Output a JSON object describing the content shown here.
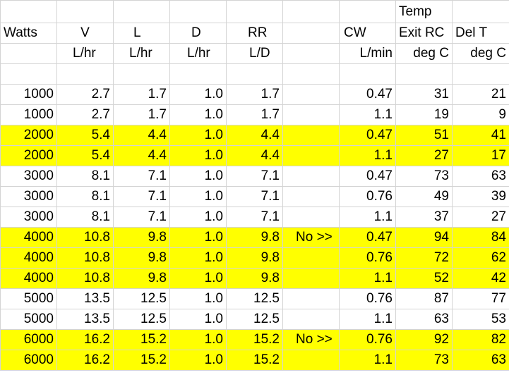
{
  "table": {
    "header": [
      [
        null,
        null,
        null,
        null,
        null,
        null,
        null,
        "Temp",
        null
      ],
      [
        "Watts",
        "V",
        "L",
        "D",
        "RR",
        null,
        "CW",
        "Exit RC",
        "Del  T"
      ],
      [
        null,
        "L/hr",
        "L/hr",
        "L/hr",
        "L/D",
        null,
        "L/min",
        "deg C",
        "deg C"
      ]
    ],
    "highlight_color": "#ffff00",
    "rows": [
      {
        "cells": [
          "1000",
          "2.7",
          "1.7",
          "1.0",
          "1.7",
          null,
          "0.47",
          "31",
          "21"
        ],
        "highlight": false
      },
      {
        "cells": [
          "1000",
          "2.7",
          "1.7",
          "1.0",
          "1.7",
          null,
          "1.1",
          "19",
          "9"
        ],
        "highlight": false
      },
      {
        "cells": [
          "2000",
          "5.4",
          "4.4",
          "1.0",
          "4.4",
          null,
          "0.47",
          "51",
          "41"
        ],
        "highlight": true
      },
      {
        "cells": [
          "2000",
          "5.4",
          "4.4",
          "1.0",
          "4.4",
          null,
          "1.1",
          "27",
          "17"
        ],
        "highlight": true
      },
      {
        "cells": [
          "3000",
          "8.1",
          "7.1",
          "1.0",
          "7.1",
          null,
          "0.47",
          "73",
          "63"
        ],
        "highlight": false
      },
      {
        "cells": [
          "3000",
          "8.1",
          "7.1",
          "1.0",
          "7.1",
          null,
          "0.76",
          "49",
          "39"
        ],
        "highlight": false
      },
      {
        "cells": [
          "3000",
          "8.1",
          "7.1",
          "1.0",
          "7.1",
          null,
          "1.1",
          "37",
          "27"
        ],
        "highlight": false
      },
      {
        "cells": [
          "4000",
          "10.8",
          "9.8",
          "1.0",
          "9.8",
          "No >>",
          "0.47",
          "94",
          "84"
        ],
        "highlight": true
      },
      {
        "cells": [
          "4000",
          "10.8",
          "9.8",
          "1.0",
          "9.8",
          null,
          "0.76",
          "72",
          "62"
        ],
        "highlight": true
      },
      {
        "cells": [
          "4000",
          "10.8",
          "9.8",
          "1.0",
          "9.8",
          null,
          "1.1",
          "52",
          "42"
        ],
        "highlight": true
      },
      {
        "cells": [
          "5000",
          "13.5",
          "12.5",
          "1.0",
          "12.5",
          null,
          "0.76",
          "87",
          "77"
        ],
        "highlight": false
      },
      {
        "cells": [
          "5000",
          "13.5",
          "12.5",
          "1.0",
          "12.5",
          null,
          "1.1",
          "63",
          "53"
        ],
        "highlight": false
      },
      {
        "cells": [
          "6000",
          "16.2",
          "15.2",
          "1.0",
          "15.2",
          "No >>",
          "0.76",
          "92",
          "82"
        ],
        "highlight": true
      },
      {
        "cells": [
          "6000",
          "16.2",
          "15.2",
          "1.0",
          "15.2",
          null,
          "1.1",
          "73",
          "63"
        ],
        "highlight": true
      }
    ]
  }
}
